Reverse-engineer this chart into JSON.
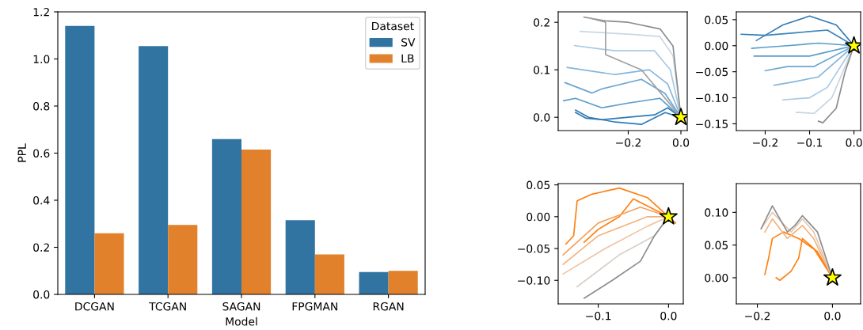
{
  "chart_data": [
    {
      "type": "bar",
      "xlabel": "Model",
      "ylabel": "PPL",
      "legend_title": "Dataset",
      "legend": "top right",
      "grid": false,
      "categories": [
        "DCGAN",
        "TCGAN",
        "SAGAN",
        "FPGMAN",
        "RGAN"
      ],
      "ylim": [
        0,
        1.2
      ],
      "yticks": [
        {
          "value": 0,
          "label": "0.0"
        },
        0.2,
        0.4,
        0.6,
        0.8,
        {
          "value": 1,
          "label": "1.0"
        },
        1.2
      ],
      "series": [
        {
          "name": "SV",
          "color": "#3274a1",
          "values": [
            1.14,
            1.055,
            0.66,
            0.315,
            0.095
          ]
        },
        {
          "name": "LB",
          "color": "#e1812c",
          "values": [
            0.26,
            0.295,
            0.615,
            0.17,
            0.1
          ]
        }
      ]
    },
    {
      "type": "line",
      "grid": false,
      "legend": false,
      "marker": "none",
      "xlim": [
        -0.466,
        0.024
      ],
      "ylim": [
        -0.028,
        0.222
      ],
      "xticks": [
        {
          "value": -0.2,
          "label": "−0.2"
        },
        {
          "value": 0.0,
          "label": "0.0"
        }
      ],
      "yticks": [
        {
          "value": 0.0,
          "label": "0.0"
        },
        {
          "value": 0.1,
          "label": "0.1"
        },
        {
          "value": 0.2,
          "label": "0.2"
        }
      ],
      "series": [
        {
          "color": "#2f7bb6",
          "x": [
            0,
            -0.05,
            -0.1,
            -0.2,
            -0.3,
            -0.36,
            -0.4
          ],
          "values": [
            0,
            0.02,
            0.005,
            0.0,
            -0.005,
            -0.002,
            0.01
          ]
        },
        {
          "color": "#2f7bb6",
          "x": [
            0,
            -0.06,
            -0.15,
            -0.25,
            -0.35,
            -0.4
          ],
          "values": [
            0,
            0.01,
            -0.015,
            -0.01,
            0.0,
            0.015
          ]
        },
        {
          "color": "#5a9ccc",
          "x": [
            0,
            -0.08,
            -0.2,
            -0.3,
            -0.4,
            -0.445
          ],
          "values": [
            0,
            0.04,
            0.03,
            0.02,
            0.04,
            0.035
          ]
        },
        {
          "color": "#6aa6d2",
          "x": [
            0,
            -0.06,
            -0.15,
            -0.3,
            -0.337,
            -0.44
          ],
          "values": [
            0,
            0.05,
            0.08,
            0.06,
            0.051,
            0.073
          ]
        },
        {
          "color": "#86b6dc",
          "x": [
            0,
            -0.05,
            -0.12,
            -0.25,
            -0.432
          ],
          "values": [
            0,
            0.07,
            0.1,
            0.09,
            0.105
          ]
        },
        {
          "color": "#a8c9e4",
          "x": [
            0,
            -0.04,
            -0.1,
            -0.25,
            -0.404
          ],
          "values": [
            0,
            0.1,
            0.14,
            0.14,
            0.151
          ]
        },
        {
          "color": "#c8d8e6",
          "x": [
            0,
            -0.03,
            -0.08,
            -0.2,
            -0.383
          ],
          "values": [
            0,
            0.13,
            0.17,
            0.175,
            0.181
          ]
        },
        {
          "color": "#8c8c8c",
          "x": [
            0,
            -0.03,
            -0.079,
            -0.2,
            -0.286,
            -0.368
          ],
          "values": [
            0,
            0.15,
            0.186,
            0.2,
            0.203,
            0.211
          ]
        },
        {
          "color": "#a0a0a0",
          "x": [
            0,
            -0.15,
            -0.286,
            -0.286,
            -0.34
          ],
          "values": [
            0,
            0.1,
            0.132,
            0.2,
            0.208
          ]
        },
        {
          "type": "scatter",
          "marker": "star",
          "color": "#ffff00",
          "x": [
            0
          ],
          "values": [
            0
          ]
        }
      ]
    },
    {
      "type": "line",
      "grid": false,
      "legend": false,
      "marker": "none",
      "xlim": [
        -0.265,
        0.015
      ],
      "ylim": [
        -0.163,
        0.065
      ],
      "xticks": [
        {
          "value": -0.2,
          "label": "−0.2"
        },
        {
          "value": -0.1,
          "label": "−0.1"
        },
        {
          "value": 0.0,
          "label": "0.0"
        }
      ],
      "yticks": [
        {
          "value": -0.15,
          "label": "−0.15"
        },
        {
          "value": -0.1,
          "label": "−0.10"
        },
        {
          "value": -0.05,
          "label": "−0.05"
        },
        {
          "value": 0.0,
          "label": "0.00"
        },
        {
          "value": 0.05,
          "label": "0.05"
        }
      ],
      "series": [
        {
          "color": "#2f7bb6",
          "x": [
            0,
            -0.04,
            -0.1,
            -0.16,
            -0.2,
            -0.254
          ],
          "values": [
            0,
            0.04,
            0.057,
            0.04,
            0.02,
            0.022
          ]
        },
        {
          "color": "#3a84bc",
          "x": [
            0,
            -0.06,
            -0.13,
            -0.2,
            -0.22
          ],
          "values": [
            0,
            0.03,
            0.025,
            0.02,
            0.01
          ]
        },
        {
          "color": "#5a9ccc",
          "x": [
            0,
            -0.08,
            -0.15,
            -0.2,
            -0.23
          ],
          "values": [
            0,
            0.005,
            0.0,
            -0.003,
            -0.005
          ]
        },
        {
          "color": "#5a9ccc",
          "x": [
            0,
            -0.1,
            -0.18,
            -0.225
          ],
          "values": [
            0,
            -0.02,
            -0.02,
            -0.02
          ]
        },
        {
          "color": "#6aa6d2",
          "x": [
            0,
            -0.09,
            -0.15,
            -0.2
          ],
          "values": [
            0,
            -0.04,
            -0.04,
            -0.048
          ]
        },
        {
          "color": "#86b6dc",
          "x": [
            0,
            -0.08,
            -0.14,
            -0.18
          ],
          "values": [
            0,
            -0.06,
            -0.07,
            -0.076
          ]
        },
        {
          "color": "#a8c9e4",
          "x": [
            0,
            -0.06,
            -0.1,
            -0.16
          ],
          "values": [
            0,
            -0.08,
            -0.1,
            -0.104
          ]
        },
        {
          "color": "#c8d4de",
          "x": [
            0,
            -0.05,
            -0.09,
            -0.13
          ],
          "values": [
            0,
            -0.1,
            -0.13,
            -0.128
          ]
        },
        {
          "color": "#8c8c8c",
          "x": [
            0,
            -0.02,
            -0.04,
            -0.07,
            -0.08
          ],
          "values": [
            0,
            -0.05,
            -0.12,
            -0.148,
            -0.145
          ]
        },
        {
          "type": "scatter",
          "marker": "star",
          "color": "#ffff00",
          "x": [
            0
          ],
          "values": [
            0
          ]
        }
      ]
    },
    {
      "type": "line",
      "grid": false,
      "legend": false,
      "marker": "none",
      "xlim": [
        -0.157,
        0.021
      ],
      "ylim": [
        -0.137,
        0.052
      ],
      "xticks": [
        {
          "value": -0.1,
          "label": "−0.1"
        },
        {
          "value": 0.0,
          "label": "0.0"
        }
      ],
      "yticks": [
        {
          "value": -0.1,
          "label": "−0.10"
        },
        {
          "value": -0.05,
          "label": "−0.05"
        },
        {
          "value": 0.0,
          "label": "0.00"
        },
        {
          "value": 0.05,
          "label": "0.05"
        }
      ],
      "series": [
        {
          "color": "#ff7f0e",
          "x": [
            0.01,
            0,
            -0.03,
            -0.07,
            -0.11,
            -0.13,
            -0.135,
            -0.146
          ],
          "values": [
            -0.01,
            0,
            0.03,
            0.045,
            0.035,
            0.025,
            -0.03,
            -0.043
          ]
        },
        {
          "color": "#ff7f0e",
          "x": [
            0,
            -0.05,
            -0.07,
            -0.1,
            -0.12
          ],
          "values": [
            0,
            0.028,
            0.0,
            -0.02,
            -0.04
          ]
        },
        {
          "color": "#f6a05a",
          "x": [
            0,
            -0.04,
            -0.1,
            -0.15
          ],
          "values": [
            0,
            0.015,
            -0.01,
            -0.06
          ]
        },
        {
          "color": "#f3b27c",
          "x": [
            0,
            -0.03,
            -0.1,
            -0.15
          ],
          "values": [
            0,
            0.0,
            -0.03,
            -0.075
          ]
        },
        {
          "color": "#eec3a2",
          "x": [
            0,
            -0.03,
            -0.09,
            -0.15
          ],
          "values": [
            0,
            -0.015,
            -0.05,
            -0.09
          ]
        },
        {
          "color": "#d9cfc7",
          "x": [
            0,
            -0.02,
            -0.07,
            -0.13
          ],
          "values": [
            0,
            -0.03,
            -0.06,
            -0.11
          ]
        },
        {
          "color": "#8c8c8c",
          "x": [
            0,
            -0.02,
            -0.04,
            -0.08,
            -0.12
          ],
          "values": [
            0,
            -0.03,
            -0.07,
            -0.1,
            -0.128
          ]
        },
        {
          "type": "scatter",
          "marker": "star",
          "color": "#ffff00",
          "x": [
            0
          ],
          "values": [
            0
          ]
        }
      ]
    },
    {
      "type": "line",
      "grid": false,
      "legend": false,
      "marker": "none",
      "xlim": [
        -0.256,
        0.075
      ],
      "ylim": [
        -0.04,
        0.144
      ],
      "xticks": [
        {
          "value": -0.2,
          "label": "−0.2"
        },
        {
          "value": 0.0,
          "label": "0.0"
        }
      ],
      "yticks": [
        {
          "value": 0.0,
          "label": "0.00"
        },
        {
          "value": 0.05,
          "label": "0.05"
        },
        {
          "value": 0.1,
          "label": "0.10"
        }
      ],
      "series": [
        {
          "color": "#ff7f0e",
          "x": [
            0,
            -0.04,
            -0.09,
            -0.13,
            -0.16,
            -0.17,
            -0.18
          ],
          "values": [
            0,
            0.04,
            0.06,
            0.07,
            0.06,
            0.03,
            0.005
          ]
        },
        {
          "color": "#ff7f0e",
          "x": [
            0,
            -0.05,
            -0.08,
            -0.09,
            -0.11,
            -0.14,
            -0.15
          ],
          "values": [
            0,
            0.045,
            0.06,
            0.03,
            0.01,
            -0.004,
            0.0
          ]
        },
        {
          "color": "#f3b27c",
          "x": [
            0,
            -0.05,
            -0.08,
            -0.12,
            -0.16,
            -0.18
          ],
          "values": [
            0,
            0.06,
            0.08,
            0.06,
            0.09,
            0.07
          ]
        },
        {
          "color": "#e6c9b2",
          "x": [
            0,
            -0.05,
            -0.08,
            -0.11,
            -0.16,
            -0.19
          ],
          "values": [
            0,
            0.07,
            0.09,
            0.07,
            0.1,
            0.075
          ]
        },
        {
          "color": "#8c8c8c",
          "x": [
            0,
            -0.04,
            -0.08,
            -0.1,
            -0.12,
            -0.16,
            -0.19
          ],
          "values": [
            0,
            0.07,
            0.095,
            0.08,
            0.07,
            0.11,
            0.075
          ]
        },
        {
          "type": "scatter",
          "marker": "star",
          "color": "#ffff00",
          "x": [
            0
          ],
          "values": [
            0
          ]
        }
      ]
    }
  ]
}
